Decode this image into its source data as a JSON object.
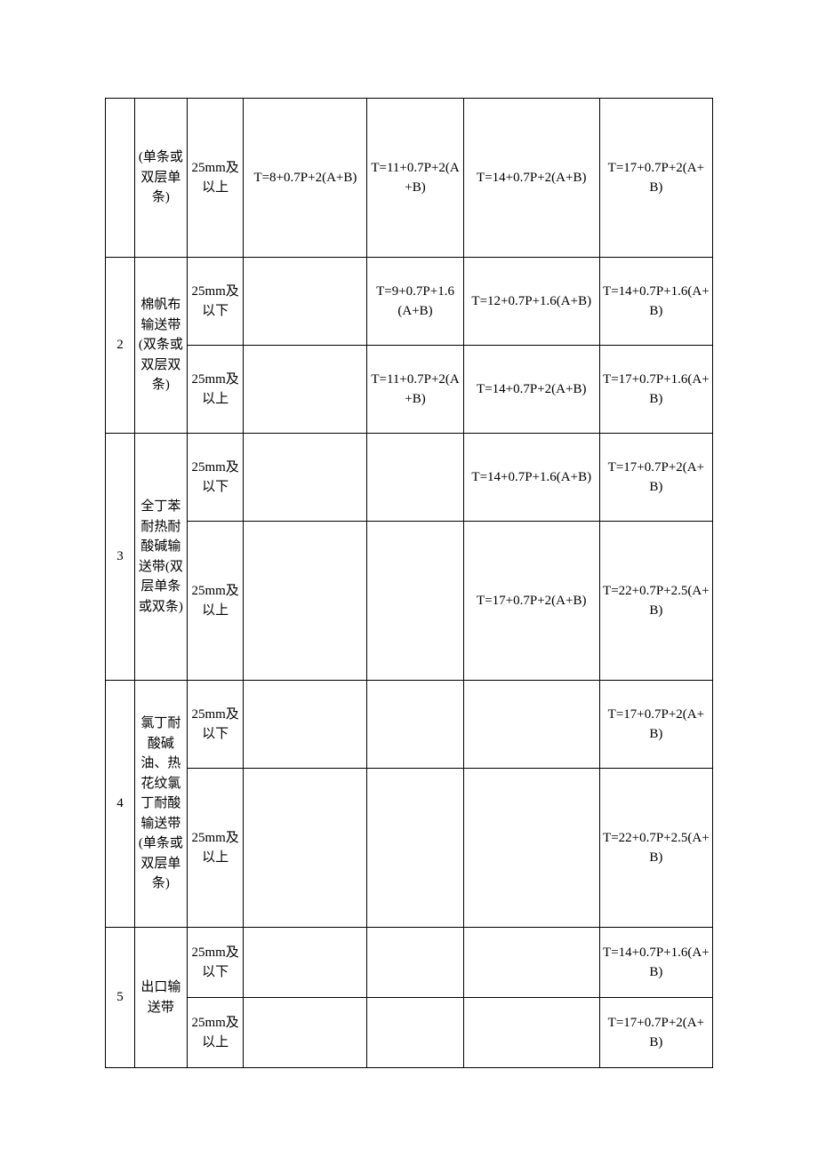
{
  "rows": [
    {
      "idx": "",
      "idxRowspan": 1,
      "name": "(单条或双层单条)",
      "nameRowspan": 1,
      "thick": "25mm及以上",
      "c3": "T=8+0.7P+2(A+B)",
      "c4": "T=11+0.7P+2(A+B)",
      "c5": "T=14+0.7P+2(A+B)",
      "c6": "T=17+0.7P+2(A+B)",
      "cls": "tall"
    },
    {
      "idx": "2",
      "idxRowspan": 2,
      "name": "棉帆布输送带(双条或双层双条)",
      "nameRowspan": 2,
      "thick": "25mm及以下",
      "c3": "",
      "c4": "T=9+0.7P+1.6(A+B)",
      "c5": "T=12+0.7P+1.6(A+B)",
      "c6": "T=14+0.7P+1.6(A+B)",
      "cls": "med"
    },
    {
      "thick": "25mm及以上",
      "c3": "",
      "c4": "T=11+0.7P+2(A+B)",
      "c5": "T=14+0.7P+2(A+B)",
      "c6": "T=17+0.7P+1.6(A+B)",
      "cls": "med"
    },
    {
      "idx": "3",
      "idxRowspan": 2,
      "name": "全丁苯耐热耐酸碱输送带(双层单条或双条)",
      "nameRowspan": 2,
      "thick": "25mm及以下",
      "c3": "",
      "c4": "",
      "c5": "T=14+0.7P+1.6(A+B)",
      "c6": "T=17+0.7P+2(A+B)",
      "cls": "med"
    },
    {
      "thick": "25mm及以上",
      "c3": "",
      "c4": "",
      "c5": "T=17+0.7P+2(A+B)",
      "c6": "T=22+0.7P+2.5(A+B)",
      "cls": "tall"
    },
    {
      "idx": "4",
      "idxRowspan": 2,
      "name": "氯丁耐酸碱油、热花纹氯丁耐酸输送带(单条或双层单条)",
      "nameRowspan": 2,
      "thick": "25mm及以下",
      "c3": "",
      "c4": "",
      "c5": "",
      "c6": "T=17+0.7P+2(A+B)",
      "cls": "med"
    },
    {
      "thick": "25mm及以上",
      "c3": "",
      "c4": "",
      "c5": "",
      "c6": "T=22+0.7P+2.5(A+B)",
      "cls": "tall"
    },
    {
      "idx": "5",
      "idxRowspan": 2,
      "name": "出口输送带",
      "nameRowspan": 2,
      "thick": "25mm及以下",
      "c3": "",
      "c4": "",
      "c5": "",
      "c6": "T=14+0.7P+1.6(A+B)",
      "cls": "short"
    },
    {
      "thick": "25mm及以上",
      "c3": "",
      "c4": "",
      "c5": "",
      "c6": "T=17+0.7P+2(A+B)",
      "cls": "short"
    }
  ]
}
